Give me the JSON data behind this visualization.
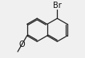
{
  "bg_color": "#f0f0f0",
  "bond_color": "#222222",
  "bond_lw": 0.9,
  "dbo": 0.03,
  "text_color": "#111111",
  "br_fontsize": 7.0,
  "o_fontsize": 7.0,
  "fig_width": 1.06,
  "fig_height": 0.73,
  "r": 0.3
}
